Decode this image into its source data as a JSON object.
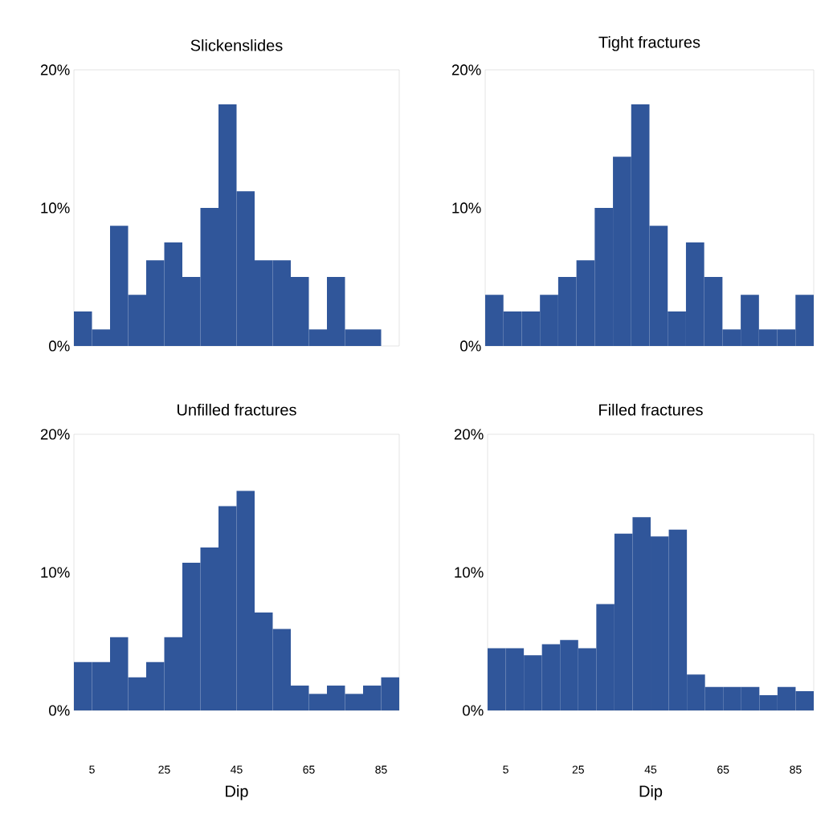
{
  "chart_data": [
    {
      "type": "histogram",
      "title": "Slickenslides",
      "bins": [
        0,
        5,
        10,
        15,
        20,
        25,
        30,
        35,
        40,
        45,
        50,
        55,
        60,
        65,
        70,
        75,
        80,
        85,
        90
      ],
      "values": [
        2.5,
        1.2,
        8.7,
        3.7,
        6.2,
        7.5,
        5.0,
        10.0,
        17.5,
        11.2,
        6.2,
        6.2,
        5.0,
        1.2,
        5.0,
        1.2,
        1.2,
        0
      ],
      "color": "#30569a",
      "xlim": [
        0,
        90
      ],
      "xticks": [
        5,
        25,
        45,
        65,
        85
      ],
      "ylim": [
        0,
        20
      ],
      "yticks": [
        {
          "value": 0,
          "label": "0%"
        },
        {
          "value": 10,
          "label": "10%"
        },
        {
          "value": 20,
          "label": "20%"
        }
      ],
      "tick_labels": "y"
    },
    {
      "type": "histogram",
      "title": "Tight fractures",
      "bins": [
        0,
        5,
        10,
        15,
        20,
        25,
        30,
        35,
        40,
        45,
        50,
        55,
        60,
        65,
        70,
        75,
        80,
        85,
        90
      ],
      "values": [
        3.7,
        2.5,
        2.5,
        3.7,
        5.0,
        6.2,
        10.0,
        13.7,
        17.5,
        8.7,
        2.5,
        7.5,
        5.0,
        1.2,
        3.7,
        1.2,
        1.2,
        3.7
      ],
      "color": "#30569a",
      "xlim": [
        0,
        90
      ],
      "xticks": [
        5,
        25,
        45,
        65,
        85
      ],
      "ylim": [
        0,
        20
      ],
      "yticks": [
        {
          "value": 0,
          "label": "0%"
        },
        {
          "value": 10,
          "label": "10%"
        },
        {
          "value": 20,
          "label": "20%"
        }
      ],
      "tick_labels": "y"
    },
    {
      "type": "histogram",
      "title": "Unfilled fractures",
      "xlabel": "Dip",
      "bins": [
        0,
        5,
        10,
        15,
        20,
        25,
        30,
        35,
        40,
        45,
        50,
        55,
        60,
        65,
        70,
        75,
        80,
        85,
        90
      ],
      "values": [
        3.5,
        3.5,
        5.3,
        2.4,
        3.5,
        5.3,
        10.7,
        11.8,
        14.8,
        15.9,
        7.1,
        5.9,
        1.8,
        1.2,
        1.8,
        1.2,
        1.8,
        2.4
      ],
      "color": "#30569a",
      "xlim": [
        0,
        90
      ],
      "xticks": [
        5,
        25,
        45,
        65,
        85
      ],
      "ylim": [
        0,
        20
      ],
      "yticks": [
        {
          "value": 0,
          "label": "0%"
        },
        {
          "value": 10,
          "label": "10%"
        },
        {
          "value": 20,
          "label": "20%"
        }
      ]
    },
    {
      "type": "histogram",
      "title": "Filled fractures",
      "xlabel": "Dip",
      "bins": [
        0,
        5,
        10,
        15,
        20,
        25,
        30,
        35,
        40,
        45,
        50,
        55,
        60,
        65,
        70,
        75,
        80,
        85,
        90
      ],
      "values": [
        4.5,
        4.5,
        4.0,
        4.8,
        5.1,
        4.5,
        7.7,
        12.8,
        14.0,
        12.6,
        13.1,
        2.6,
        1.7,
        1.7,
        1.7,
        1.1,
        1.7,
        1.4
      ],
      "color": "#30569a",
      "xlim": [
        0,
        90
      ],
      "xticks": [
        5,
        25,
        45,
        65,
        85
      ],
      "ylim": [
        0,
        20
      ],
      "yticks": [
        {
          "value": 0,
          "label": "0%"
        },
        {
          "value": 10,
          "label": "10%"
        },
        {
          "value": 20,
          "label": "20%"
        }
      ]
    }
  ]
}
